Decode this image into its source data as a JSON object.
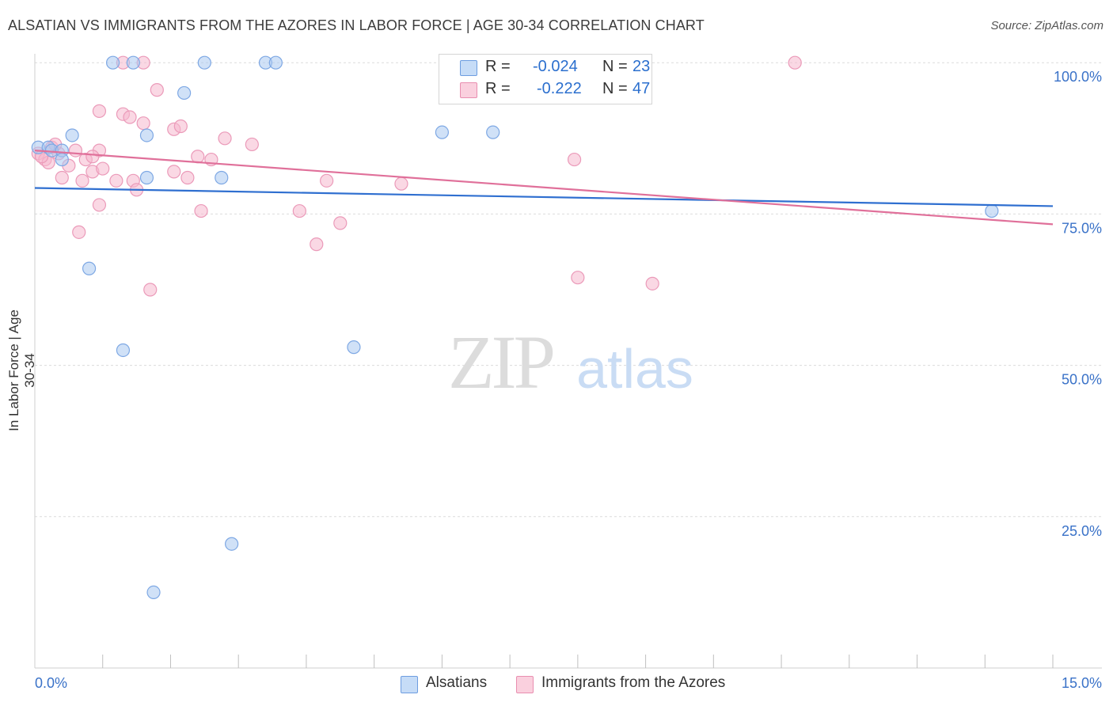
{
  "title": "ALSATIAN VS IMMIGRANTS FROM THE AZORES IN LABOR FORCE | AGE 30-34 CORRELATION CHART",
  "source": "Source: ZipAtlas.com",
  "watermark": {
    "zip": "ZIP",
    "atlas": "atlas"
  },
  "stats": {
    "r_label": "R =",
    "n_label": "N =",
    "alsatians": {
      "r": "-0.024",
      "n": "23"
    },
    "azores": {
      "r": "-0.222",
      "n": "47"
    }
  },
  "legend": {
    "alsatians": "Alsatians",
    "azores": "Immigrants from the Azores"
  },
  "colors": {
    "blue_fill": "#a9c8f0",
    "blue_line": "#2f6fd0",
    "pink_fill": "#f6b8ce",
    "pink_line": "#e0709a",
    "axis_text": "#3a72c8",
    "grid": "#dcdcdc"
  },
  "chart_data": {
    "type": "scatter",
    "title": "ALSATIAN VS IMMIGRANTS FROM THE AZORES IN LABOR FORCE | AGE 30-34 CORRELATION CHART",
    "xlabel": "",
    "ylabel": "In Labor Force | Age 30-34",
    "xlim": [
      0,
      15
    ],
    "ylim": [
      0,
      105
    ],
    "x_tick_labels": [
      "0.0%",
      "15.0%"
    ],
    "y_ticks": [
      25,
      50,
      75,
      100
    ],
    "y_tick_labels": [
      "25.0%",
      "50.0%",
      "75.0%",
      "100.0%"
    ],
    "series": [
      {
        "name": "Alsatians",
        "r": -0.024,
        "n": 23,
        "trend": {
          "x": [
            0,
            15
          ],
          "y": [
            79.3,
            76.3
          ]
        },
        "points": [
          [
            0.05,
            86
          ],
          [
            0.2,
            86
          ],
          [
            0.25,
            85.5
          ],
          [
            0.4,
            85.5
          ],
          [
            0.55,
            88
          ],
          [
            0.4,
            84
          ],
          [
            0.8,
            66
          ],
          [
            1.15,
            100
          ],
          [
            1.45,
            100
          ],
          [
            1.65,
            88
          ],
          [
            1.65,
            81
          ],
          [
            2.2,
            95
          ],
          [
            2.5,
            100
          ],
          [
            2.75,
            81
          ],
          [
            3.4,
            100
          ],
          [
            3.55,
            100
          ],
          [
            1.3,
            52.5
          ],
          [
            4.7,
            53
          ],
          [
            6.0,
            88.5
          ],
          [
            6.75,
            88.5
          ],
          [
            14.1,
            75.5
          ],
          [
            2.9,
            20.5
          ],
          [
            1.75,
            12.5
          ]
        ]
      },
      {
        "name": "Immigrants from the Azores",
        "r": -0.222,
        "n": 47,
        "trend": {
          "x": [
            0,
            15
          ],
          "y": [
            85.5,
            73.3
          ]
        },
        "points": [
          [
            0.05,
            85
          ],
          [
            0.15,
            84
          ],
          [
            0.25,
            86
          ],
          [
            0.35,
            85
          ],
          [
            0.5,
            83
          ],
          [
            0.6,
            85.5
          ],
          [
            0.75,
            84
          ],
          [
            0.85,
            82
          ],
          [
            0.95,
            85.5
          ],
          [
            0.7,
            80.5
          ],
          [
            0.4,
            81
          ],
          [
            0.2,
            83.5
          ],
          [
            0.65,
            72
          ],
          [
            0.95,
            76.5
          ],
          [
            0.95,
            92
          ],
          [
            1.3,
            91.5
          ],
          [
            1.4,
            91
          ],
          [
            1.6,
            90
          ],
          [
            1.8,
            95.5
          ],
          [
            1.3,
            100
          ],
          [
            1.6,
            100
          ],
          [
            1.45,
            80.5
          ],
          [
            1.5,
            79
          ],
          [
            2.05,
            89
          ],
          [
            2.15,
            89.5
          ],
          [
            2.25,
            81
          ],
          [
            2.4,
            84.5
          ],
          [
            2.6,
            84
          ],
          [
            2.8,
            87.5
          ],
          [
            2.45,
            75.5
          ],
          [
            3.2,
            86.5
          ],
          [
            3.9,
            75.5
          ],
          [
            4.15,
            70
          ],
          [
            4.3,
            80.5
          ],
          [
            4.5,
            73.5
          ],
          [
            5.4,
            80
          ],
          [
            1.7,
            62.5
          ],
          [
            7.95,
            84
          ],
          [
            8.0,
            64.5
          ],
          [
            9.1,
            63.5
          ],
          [
            11.2,
            100
          ],
          [
            0.1,
            84.5
          ],
          [
            1.2,
            80.5
          ],
          [
            0.85,
            84.5
          ],
          [
            0.3,
            86.5
          ],
          [
            1.0,
            82.5
          ],
          [
            2.05,
            82
          ]
        ]
      }
    ]
  }
}
